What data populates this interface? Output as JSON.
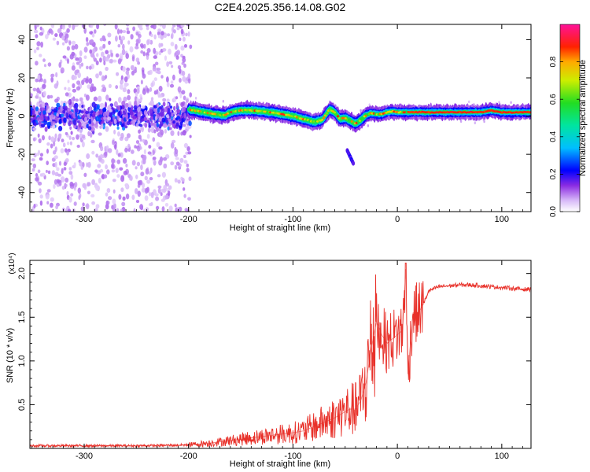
{
  "figure": {
    "title": "C2E4.2025.356.14.08.G02"
  },
  "chart_data": [
    {
      "type": "heatmap",
      "name": "spectrogram",
      "xlabel": "Height of straight line (km)",
      "ylabel": "Frequency (Hz)",
      "xlim": [
        -352,
        128
      ],
      "ylim": [
        -50,
        48
      ],
      "xticks": [
        -300,
        -200,
        -100,
        0,
        100
      ],
      "yticks": [
        -40,
        -20,
        0,
        20,
        40
      ],
      "colorbar": {
        "label": "Normalized spectral amplitude",
        "range": [
          0.0,
          1.0
        ],
        "ticks": [
          0.0,
          0.2,
          0.4,
          0.6,
          0.8
        ],
        "tick_labels": [
          "0.0",
          "0.2",
          "0.4",
          "0.6",
          "0.8"
        ]
      },
      "ridge": {
        "description": "dominant spectral ridge (frequency in Hz vs height in km)",
        "x": [
          -200,
          -185,
          -175,
          -165,
          -160,
          -150,
          -140,
          -130,
          -120,
          -110,
          -100,
          -90,
          -80,
          -72,
          -65,
          -60,
          -55,
          -50,
          -45,
          -40,
          -35,
          -30,
          -25,
          -20,
          -15,
          -10,
          -5,
          0,
          10,
          20,
          40,
          60,
          80,
          90,
          100,
          128
        ],
        "y": [
          3.5,
          2.0,
          1.0,
          0.5,
          2.0,
          3.0,
          3.0,
          2.5,
          2.0,
          1.0,
          0.0,
          -1.5,
          -3.0,
          -2.0,
          3.5,
          2.0,
          -1.5,
          -1.0,
          -2.5,
          -4.0,
          -2.0,
          0.5,
          1.5,
          1.0,
          1.0,
          2.0,
          2.5,
          2.0,
          2.0,
          2.0,
          2.0,
          2.0,
          2.0,
          3.0,
          2.0,
          2.0
        ]
      },
      "outlier_streak": {
        "x": [
          -48,
          -42
        ],
        "y": [
          -18,
          -25
        ]
      }
    },
    {
      "type": "line",
      "name": "snr",
      "xlabel": "Height of straight line (km)",
      "ylabel": "SNR (10 * v/v)",
      "scale_label": "(x10⁴)",
      "xlim": [
        -352,
        128
      ],
      "ylim": [
        0.0,
        2.15
      ],
      "xticks": [
        -300,
        -200,
        -100,
        0,
        100
      ],
      "yticks": [
        0.5,
        1.0,
        1.5,
        2.0
      ],
      "ytick_labels": [
        "0.5",
        "1.0",
        "1.5",
        "2.0"
      ],
      "series": [
        {
          "name": "SNR",
          "color": "#e8312a",
          "x": [
            -352,
            -300,
            -250,
            -220,
            -200,
            -180,
            -160,
            -140,
            -120,
            -100,
            -90,
            -80,
            -70,
            -60,
            -50,
            -45,
            -40,
            -35,
            -30,
            -25,
            -20,
            -15,
            -10,
            -5,
            0,
            5,
            8,
            10,
            15,
            20,
            25,
            30,
            40,
            50,
            60,
            70,
            80,
            90,
            100,
            110,
            120,
            128
          ],
          "y": [
            0.03,
            0.03,
            0.03,
            0.035,
            0.04,
            0.06,
            0.09,
            0.12,
            0.15,
            0.18,
            0.2,
            0.25,
            0.3,
            0.35,
            0.42,
            0.45,
            0.45,
            0.55,
            0.75,
            1.15,
            1.45,
            1.3,
            1.2,
            1.25,
            1.3,
            1.35,
            2.05,
            0.85,
            1.55,
            1.55,
            1.65,
            1.8,
            1.85,
            1.86,
            1.87,
            1.87,
            1.86,
            1.85,
            1.84,
            1.83,
            1.82,
            1.82
          ]
        }
      ]
    }
  ]
}
